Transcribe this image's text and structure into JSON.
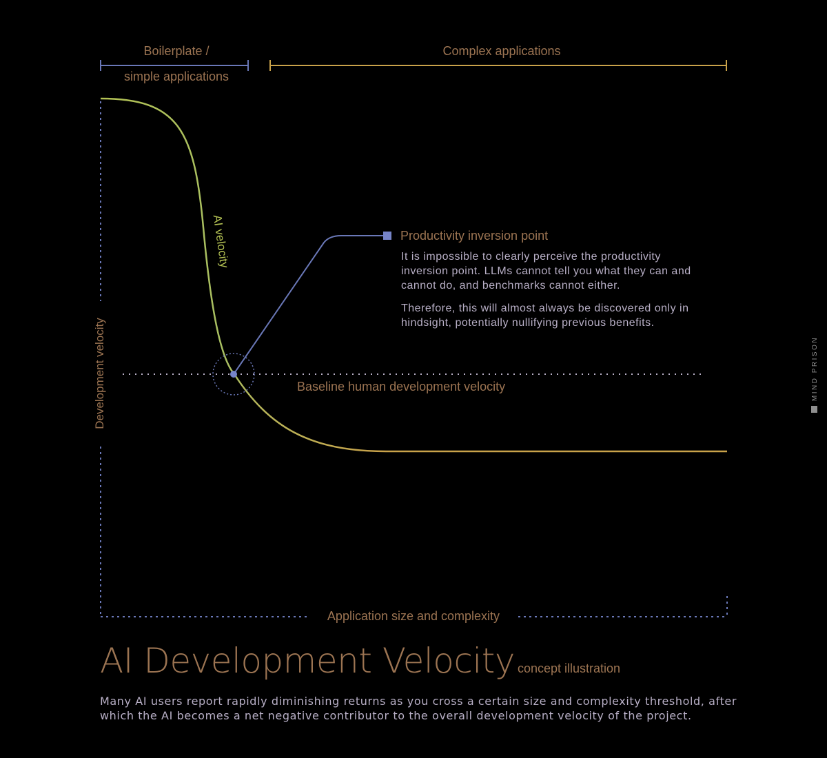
{
  "ranges": {
    "simple": {
      "label_line1": "Boilerplate /",
      "label_line2": "simple applications"
    },
    "complex": {
      "label": "Complex applications"
    }
  },
  "axes": {
    "y_label": "Development velocity",
    "x_label": "Application size and complexity"
  },
  "curve": {
    "label": "AI velocity"
  },
  "baseline": {
    "label": "Baseline human development velocity"
  },
  "callout": {
    "title": "Productivity inversion point",
    "paragraph1": [
      "It is impossible to clearly perceive the productivity",
      "inversion point. LLMs cannot tell you what they can and",
      "cannot do, and benchmarks cannot either."
    ],
    "paragraph2": [
      "Therefore, this will almost always be discovered only in",
      "hindsight, potentially nullifying previous benefits."
    ]
  },
  "watermark": {
    "text": "MIND PRISON"
  },
  "title": {
    "main": "AI Development Velocity",
    "sub": "concept illustration"
  },
  "footer": {
    "lines": [
      "Many AI users report rapidly diminishing returns as you cross a certain size and complexity threshold, after",
      "which the AI becomes a net negative contributor to the overall development velocity of the project."
    ]
  },
  "colors": {
    "background": "#000000",
    "label": "#9c7452",
    "axis": "#6a78b8",
    "curve_green": "#b4c254",
    "curve_gold": "#c9a24a",
    "text_light": "#b8afc6",
    "watermark": "#8f8f8f"
  }
}
